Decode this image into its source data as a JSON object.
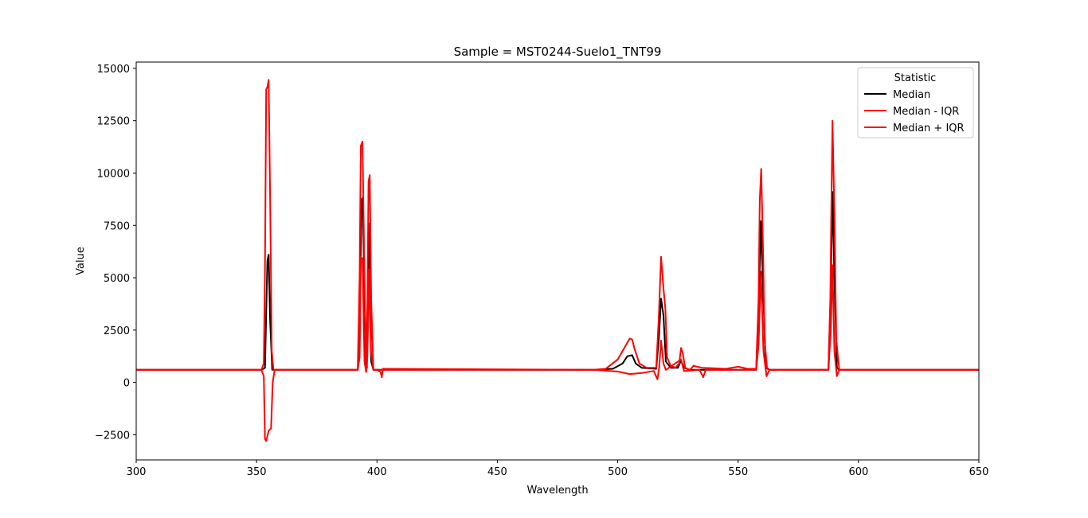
{
  "chart_data": {
    "type": "line",
    "title": "Sample = MST0244-Suelo1_TNT99",
    "xlabel": "Wavelength",
    "ylabel": "Value",
    "xlim": [
      300,
      650
    ],
    "ylim": [
      -3700,
      15300
    ],
    "xticks": [
      300,
      350,
      400,
      450,
      500,
      550,
      600,
      650
    ],
    "yticks": [
      -2500,
      0,
      2500,
      5000,
      7500,
      10000,
      12500,
      15000
    ],
    "xtick_labels": [
      "300",
      "350",
      "400",
      "450",
      "500",
      "550",
      "600",
      "650"
    ],
    "ytick_labels": [
      "−2500",
      "0",
      "2500",
      "5000",
      "7500",
      "10000",
      "12500",
      "15000"
    ],
    "grid": false,
    "legend": {
      "title": "Statistic",
      "placement": "top-right",
      "entries": [
        "Median",
        "Median - IQR",
        "Median + IQR"
      ]
    },
    "series": [
      {
        "name": "Median",
        "color": "#000000",
        "points": [
          [
            300,
            600
          ],
          [
            352,
            600
          ],
          [
            353.5,
            700
          ],
          [
            354.5,
            5800
          ],
          [
            355,
            6100
          ],
          [
            355.6,
            3000
          ],
          [
            356.5,
            600
          ],
          [
            392,
            600
          ],
          [
            392.8,
            1500
          ],
          [
            393.5,
            8700
          ],
          [
            394,
            8800
          ],
          [
            394.7,
            5000
          ],
          [
            395.3,
            1200
          ],
          [
            395.8,
            700
          ],
          [
            396.5,
            7600
          ],
          [
            397,
            5000
          ],
          [
            397.6,
            1000
          ],
          [
            398.5,
            600
          ],
          [
            490,
            600
          ],
          [
            498,
            650
          ],
          [
            502,
            900
          ],
          [
            504,
            1250
          ],
          [
            506,
            1300
          ],
          [
            507.5,
            900
          ],
          [
            510,
            700
          ],
          [
            516,
            650
          ],
          [
            517,
            2000
          ],
          [
            518,
            4000
          ],
          [
            519,
            3200
          ],
          [
            520,
            1000
          ],
          [
            522,
            700
          ],
          [
            525,
            700
          ],
          [
            526.3,
            1050
          ],
          [
            527.5,
            700
          ],
          [
            530,
            600
          ],
          [
            557.5,
            600
          ],
          [
            558.5,
            3500
          ],
          [
            559.5,
            7700
          ],
          [
            560.5,
            4000
          ],
          [
            561.5,
            700
          ],
          [
            563,
            600
          ],
          [
            587.5,
            600
          ],
          [
            588.5,
            4500
          ],
          [
            589.2,
            9100
          ],
          [
            590,
            5000
          ],
          [
            591,
            700
          ],
          [
            592,
            600
          ],
          [
            650,
            600
          ]
        ]
      },
      {
        "name": "Median - IQR",
        "color": "#ff0000",
        "points": [
          [
            300,
            600
          ],
          [
            352,
            600
          ],
          [
            353,
            300
          ],
          [
            353.5,
            -2700
          ],
          [
            354,
            -2800
          ],
          [
            355,
            -2300
          ],
          [
            356,
            -2200
          ],
          [
            356.7,
            0
          ],
          [
            357.5,
            600
          ],
          [
            392,
            600
          ],
          [
            392.8,
            1200
          ],
          [
            393.3,
            6000
          ],
          [
            394,
            5900
          ],
          [
            394.8,
            1000
          ],
          [
            395.5,
            500
          ],
          [
            396,
            1200
          ],
          [
            396.8,
            5400
          ],
          [
            397.5,
            1500
          ],
          [
            398.5,
            600
          ],
          [
            400,
            600
          ],
          [
            401.5,
            500
          ],
          [
            402,
            250
          ],
          [
            402.5,
            650
          ],
          [
            490,
            600
          ],
          [
            500,
            520
          ],
          [
            505,
            400
          ],
          [
            510,
            450
          ],
          [
            515,
            550
          ],
          [
            516.5,
            150
          ],
          [
            517.2,
            700
          ],
          [
            518,
            2000
          ],
          [
            519,
            900
          ],
          [
            520,
            600
          ],
          [
            526.3,
            1100
          ],
          [
            527.5,
            550
          ],
          [
            534,
            600
          ],
          [
            535.5,
            250
          ],
          [
            536.5,
            600
          ],
          [
            557.5,
            600
          ],
          [
            558.5,
            1800
          ],
          [
            559.5,
            5300
          ],
          [
            560.5,
            1500
          ],
          [
            561.8,
            300
          ],
          [
            563,
            600
          ],
          [
            587.5,
            600
          ],
          [
            588.5,
            2500
          ],
          [
            589.2,
            5600
          ],
          [
            590,
            1500
          ],
          [
            591,
            300
          ],
          [
            592,
            600
          ],
          [
            650,
            600
          ]
        ]
      },
      {
        "name": "Median + IQR",
        "color": "#ff0000",
        "points": [
          [
            300,
            600
          ],
          [
            352,
            600
          ],
          [
            353,
            900
          ],
          [
            353.5,
            5500
          ],
          [
            354,
            14000
          ],
          [
            354.5,
            14100
          ],
          [
            355,
            14450
          ],
          [
            355.6,
            9000
          ],
          [
            356.3,
            1500
          ],
          [
            357,
            600
          ],
          [
            392,
            600
          ],
          [
            392.8,
            5000
          ],
          [
            393.3,
            11300
          ],
          [
            394,
            11500
          ],
          [
            394.8,
            5000
          ],
          [
            395.5,
            1000
          ],
          [
            396,
            3500
          ],
          [
            396.5,
            9600
          ],
          [
            397,
            9900
          ],
          [
            397.6,
            4000
          ],
          [
            398.5,
            600
          ],
          [
            490,
            600
          ],
          [
            495,
            650
          ],
          [
            500,
            1100
          ],
          [
            502,
            1500
          ],
          [
            504,
            1900
          ],
          [
            505,
            2100
          ],
          [
            506,
            2050
          ],
          [
            507,
            1600
          ],
          [
            509,
            900
          ],
          [
            512,
            700
          ],
          [
            516,
            700
          ],
          [
            517,
            3000
          ],
          [
            518,
            6000
          ],
          [
            519,
            4500
          ],
          [
            519.8,
            3500
          ],
          [
            520.5,
            1200
          ],
          [
            522,
            800
          ],
          [
            524,
            700
          ],
          [
            525.5,
            900
          ],
          [
            526.3,
            1650
          ],
          [
            527,
            1400
          ],
          [
            528,
            700
          ],
          [
            530,
            600
          ],
          [
            531.5,
            800
          ],
          [
            533,
            750
          ],
          [
            535,
            700
          ],
          [
            545,
            650
          ],
          [
            550,
            750
          ],
          [
            554,
            650
          ],
          [
            557.5,
            650
          ],
          [
            558.5,
            4000
          ],
          [
            559,
            8700
          ],
          [
            559.6,
            10200
          ],
          [
            560.4,
            6000
          ],
          [
            561,
            2000
          ],
          [
            562,
            700
          ],
          [
            563,
            600
          ],
          [
            587.5,
            600
          ],
          [
            588.3,
            4000
          ],
          [
            588.8,
            9000
          ],
          [
            589.2,
            12500
          ],
          [
            590,
            8000
          ],
          [
            590.8,
            2000
          ],
          [
            592,
            600
          ],
          [
            650,
            600
          ]
        ]
      }
    ]
  }
}
